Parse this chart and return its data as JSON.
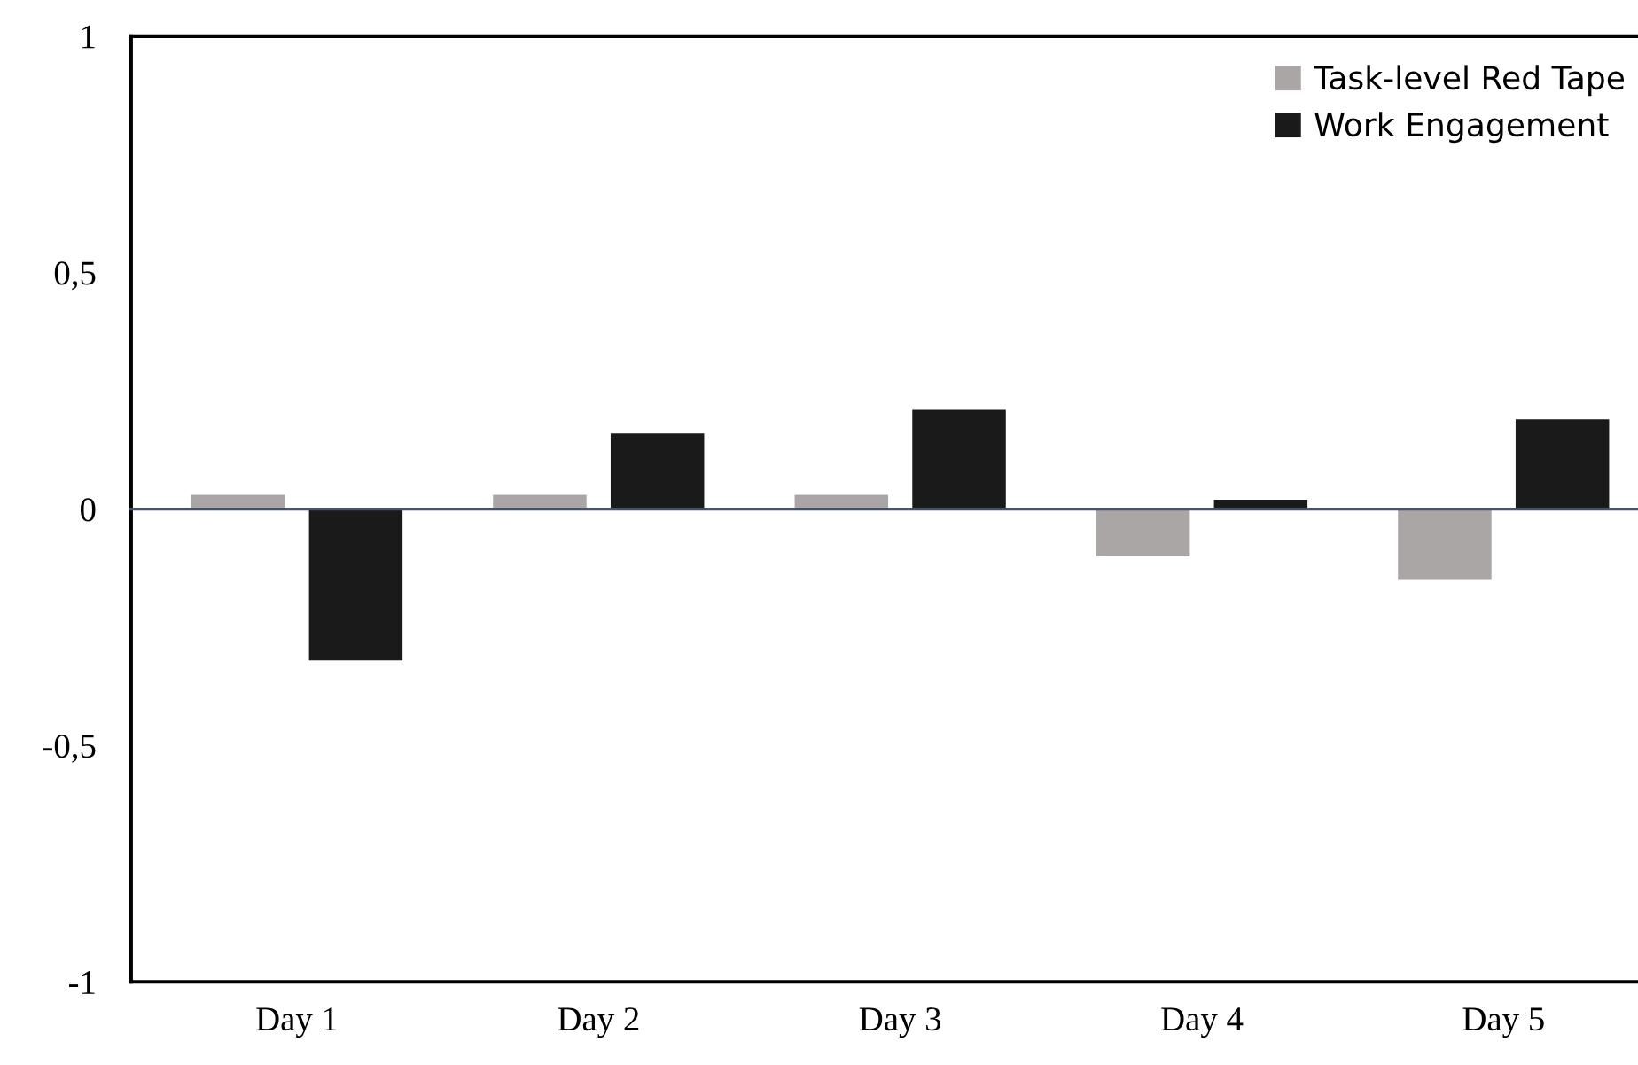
{
  "chart_data": {
    "type": "bar",
    "categories": [
      "Day 1",
      "Day 2",
      "Day 3",
      "Day 4",
      "Day 5"
    ],
    "series": [
      {
        "name": "Task-level Red Tape",
        "color": "#aaa6a6",
        "values": [
          0.03,
          0.03,
          0.03,
          -0.1,
          -0.15
        ]
      },
      {
        "name": "Work Engagement",
        "color": "#1a1a1a",
        "values": [
          -0.32,
          0.16,
          0.21,
          0.02,
          0.19
        ]
      }
    ],
    "ylim": [
      -1,
      1
    ],
    "yticks": [
      {
        "value": -1,
        "label": "-1"
      },
      {
        "value": -0.5,
        "label": "-0,5"
      },
      {
        "value": 0,
        "label": "0"
      },
      {
        "value": 0.5,
        "label": "0,5"
      },
      {
        "value": 1,
        "label": "1"
      }
    ],
    "legend": "top right"
  }
}
